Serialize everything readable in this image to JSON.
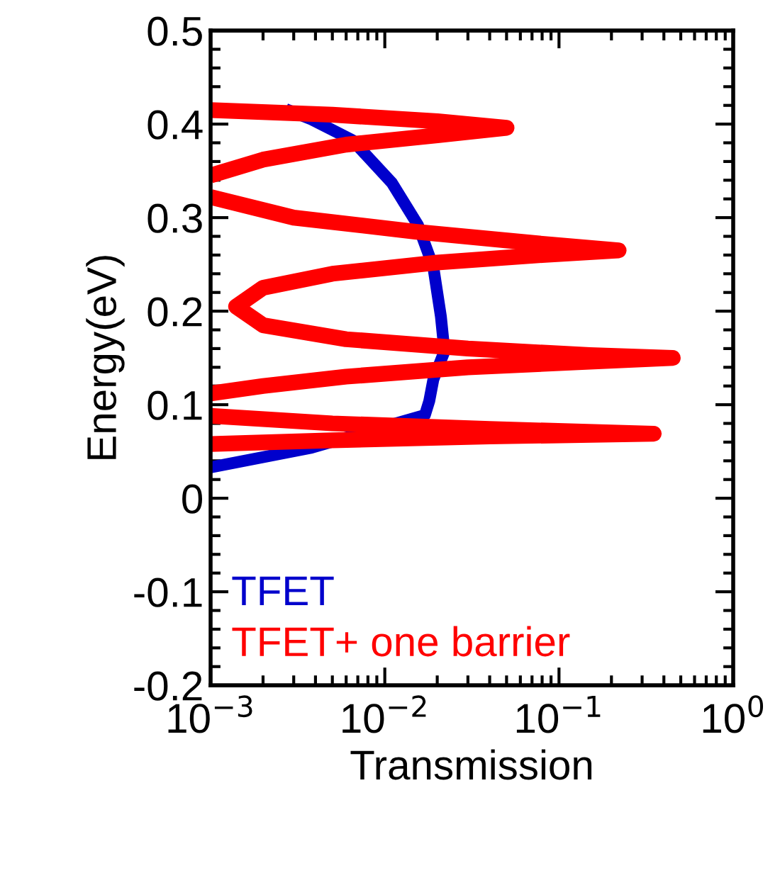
{
  "chart_data": {
    "type": "line",
    "xlabel": "Transmission",
    "ylabel": "Energy(eV)",
    "log": "x",
    "xlim": [
      0.001,
      1
    ],
    "xticks": [
      {
        "value": 0.001,
        "label": "10$^{−3}$"
      },
      {
        "value": 0.01,
        "label": "10$^{−2}$"
      },
      {
        "value": 0.1,
        "label": "10$^{−1}$"
      },
      {
        "value": 1,
        "label": "10$^{0}$"
      }
    ],
    "ylim": [
      -0.2,
      0.5
    ],
    "yticks": [
      -0.2,
      -0.1,
      0,
      0.1,
      0.2,
      0.3,
      0.4,
      0.5
    ],
    "grid": false,
    "legend": "bottom left",
    "marker": "none",
    "line_style": "solid",
    "series": [
      {
        "name": "TFET",
        "color": "#0000cc",
        "x": [
          0.001,
          0.0038,
          0.017,
          0.018,
          0.019,
          0.022,
          0.021,
          0.019,
          0.0155,
          0.011,
          0.0065,
          0.0038,
          0.0027
        ],
        "values": [
          0.033,
          0.054,
          0.089,
          0.104,
          0.127,
          0.157,
          0.194,
          0.247,
          0.292,
          0.337,
          0.383,
          0.405,
          0.416
        ]
      },
      {
        "name": "TFET+ one barrier",
        "color": "#ff0000",
        "x": [
          0.001,
          0.005,
          0.02,
          0.05,
          0.02,
          0.006,
          0.002,
          0.001,
          null,
          0.001,
          0.003,
          0.015,
          0.08,
          0.22,
          0.08,
          0.02,
          0.005,
          0.002,
          0.0014,
          0.002,
          0.006,
          0.03,
          0.15,
          0.45,
          0.15,
          0.03,
          0.006,
          0.002,
          0.001,
          null,
          0.001,
          0.005,
          0.04,
          0.35,
          0.04,
          0.005,
          0.001
        ],
        "values": [
          0.415,
          0.41,
          0.403,
          0.396,
          0.388,
          0.378,
          0.362,
          0.345,
          null,
          0.322,
          0.3,
          0.285,
          0.272,
          0.265,
          0.26,
          0.252,
          0.24,
          0.225,
          0.205,
          0.185,
          0.17,
          0.16,
          0.153,
          0.15,
          0.146,
          0.14,
          0.13,
          0.12,
          0.112,
          null,
          0.088,
          0.08,
          0.074,
          0.069,
          0.066,
          0.062,
          0.058
        ]
      }
    ]
  }
}
